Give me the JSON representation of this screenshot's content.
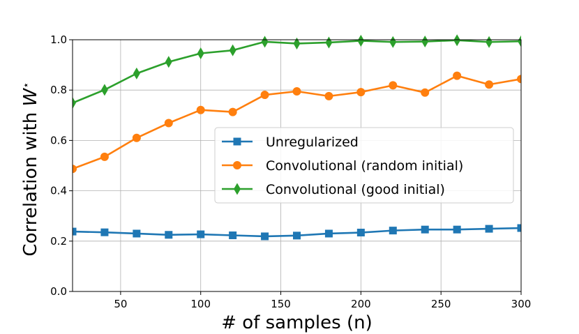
{
  "chart_data": {
    "type": "line",
    "title": "",
    "xlabel": "# of samples (n)",
    "ylabel": "Correlation with W*",
    "ylabel_main": "Correlation with ",
    "ylabel_symbol": "W",
    "ylabel_sup": "⋆",
    "xlim": [
      20,
      300
    ],
    "ylim": [
      0.0,
      1.0
    ],
    "grid": true,
    "legend_position": "center-right",
    "x": [
      20,
      40,
      60,
      80,
      100,
      120,
      140,
      160,
      180,
      200,
      220,
      240,
      260,
      280,
      300
    ],
    "x_ticks": [
      50,
      100,
      150,
      200,
      250,
      300
    ],
    "x_tick_labels": [
      "50",
      "100",
      "150",
      "200",
      "250",
      "300"
    ],
    "y_ticks": [
      0.0,
      0.2,
      0.4,
      0.6,
      0.8,
      1.0
    ],
    "y_tick_labels": [
      "0.0",
      "0.2",
      "0.4",
      "0.6",
      "0.8",
      "1.0"
    ],
    "series": [
      {
        "name": "Unregularized",
        "color": "#1f77b4",
        "marker": "square",
        "values": [
          0.238,
          0.235,
          0.23,
          0.225,
          0.227,
          0.223,
          0.219,
          0.222,
          0.23,
          0.234,
          0.242,
          0.246,
          0.246,
          0.249,
          0.252
        ]
      },
      {
        "name": "Convolutional (random initial)",
        "color": "#ff7f0e",
        "marker": "circle",
        "values": [
          0.487,
          0.535,
          0.61,
          0.669,
          0.721,
          0.713,
          0.781,
          0.795,
          0.776,
          0.792,
          0.819,
          0.79,
          0.857,
          0.822,
          0.844
        ]
      },
      {
        "name": "Convolutional (good initial)",
        "color": "#2ca02c",
        "marker": "diamond",
        "values": [
          0.749,
          0.801,
          0.866,
          0.912,
          0.946,
          0.958,
          0.992,
          0.985,
          0.989,
          0.996,
          0.991,
          0.993,
          0.998,
          0.991,
          0.994
        ]
      }
    ]
  }
}
